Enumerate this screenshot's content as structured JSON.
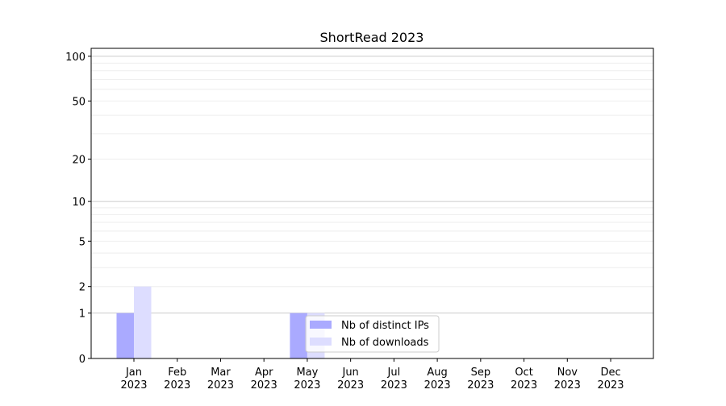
{
  "chart_data": {
    "type": "bar",
    "title": "ShortRead 2023",
    "xlabel": "",
    "ylabel": "",
    "y_scale": "log1p",
    "ylim": [
      0,
      113
    ],
    "grid": "horizontal, major and minor",
    "legend_placement": "lower-center",
    "categories": [
      "Jan\n2023",
      "Feb\n2023",
      "Mar\n2023",
      "Apr\n2023",
      "May\n2023",
      "Jun\n2023",
      "Jul\n2023",
      "Aug\n2023",
      "Sep\n2023",
      "Oct\n2023",
      "Nov\n2023",
      "Dec\n2023"
    ],
    "y_ticks": [
      0,
      1,
      2,
      5,
      10,
      20,
      50,
      100
    ],
    "series": [
      {
        "name": "Nb of distinct IPs",
        "color": "#aaaaff",
        "values": [
          1,
          0,
          0,
          0,
          1,
          0,
          0,
          0,
          0,
          0,
          0,
          0
        ]
      },
      {
        "name": "Nb of downloads",
        "color": "#ddddff",
        "values": [
          2,
          0,
          0,
          0,
          1,
          0,
          0,
          0,
          0,
          0,
          0,
          0
        ]
      }
    ]
  }
}
